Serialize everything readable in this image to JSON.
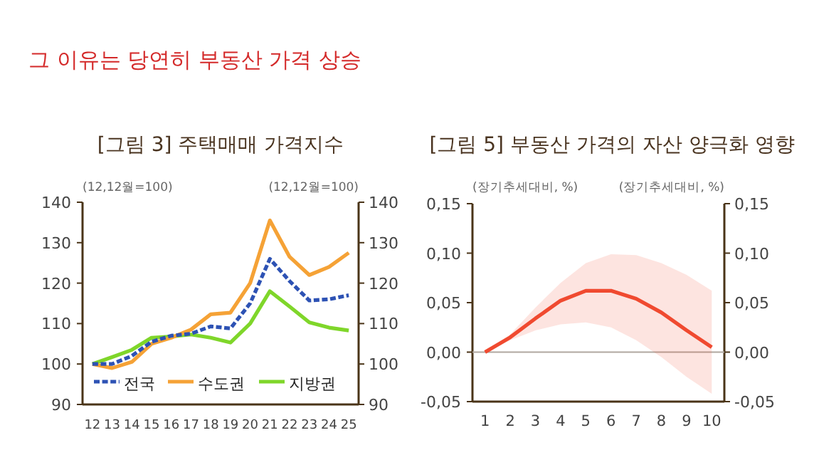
{
  "chart_data": [
    {
      "type": "other",
      "title": "그 이유는 당연히 부동산 가격 상승"
    },
    {
      "type": "line",
      "title": "[그림 3] 주택매매 가격지수",
      "ylabel": "(12,12월=100)",
      "y2label": "(12,12월=100)",
      "categories": [
        "12",
        "13",
        "14",
        "15",
        "16",
        "17",
        "18",
        "19",
        "20",
        "21",
        "22",
        "23",
        "24",
        "25"
      ],
      "ylim": [
        90,
        140
      ],
      "yticks": [
        90,
        100,
        110,
        120,
        130,
        140
      ],
      "y2lim": [
        90,
        140
      ],
      "y2ticks": [
        90,
        100,
        110,
        120,
        130,
        140
      ],
      "legend": "bottom right",
      "grid": false,
      "series": [
        {
          "name": "전국",
          "color": "#2d52b4",
          "line_style": "dashed",
          "values": [
            100,
            100,
            102,
            105.5,
            107,
            107.5,
            109.3,
            108.8,
            115,
            126,
            120.5,
            115.7,
            116,
            117
          ]
        },
        {
          "name": "수도권",
          "color": "#f5a236",
          "line_style": "solid",
          "values": [
            100,
            99,
            100.5,
            105,
            106.5,
            108.5,
            112.3,
            112.7,
            120,
            135.5,
            126.5,
            122,
            124,
            127.5
          ]
        },
        {
          "name": "지방권",
          "color": "#7fd62a",
          "line_style": "solid",
          "values": [
            100,
            101.7,
            103.5,
            106.5,
            106.8,
            107.3,
            106.5,
            105.3,
            110,
            118,
            114.2,
            110.3,
            109,
            108.3
          ]
        }
      ]
    },
    {
      "type": "line",
      "title": "[그림 5] 부동산 가격의 자산 양극화 영향",
      "ylabel": "(장기추세대비, %)",
      "y2label": "(장기추세대비, %)",
      "categories": [
        "1",
        "2",
        "3",
        "4",
        "5",
        "6",
        "7",
        "8",
        "9",
        "10"
      ],
      "ylim": [
        -0.05,
        0.15
      ],
      "yticks": [
        {
          "value": -0.05,
          "label": "-0,05"
        },
        {
          "value": 0,
          "label": "0,00"
        },
        {
          "value": 0.05,
          "label": "0,05"
        },
        {
          "value": 0.1,
          "label": "0,10"
        },
        {
          "value": 0.15,
          "label": "0,15"
        }
      ],
      "y2lim": [
        -0.05,
        0.15
      ],
      "y2ticks": [
        {
          "value": -0.05,
          "label": "-0,05"
        },
        {
          "value": 0,
          "label": "0,00"
        },
        {
          "value": 0.05,
          "label": "0,05"
        },
        {
          "value": 0.1,
          "label": "0,10"
        },
        {
          "value": 0.15,
          "label": "0,15"
        }
      ],
      "grid": false,
      "ref_lines": [
        {
          "axis": "y",
          "value": 0,
          "color": "#b0a8a0"
        }
      ],
      "series": [
        {
          "color": "#f04a30",
          "line_style": "solid",
          "values": [
            0,
            0.015,
            0.034,
            0.052,
            0.062,
            0.062,
            0.054,
            0.04,
            0.022,
            0.005
          ],
          "lower": [
            0,
            0.012,
            0.022,
            0.028,
            0.03,
            0.025,
            0.012,
            -0.005,
            -0.025,
            -0.042
          ],
          "upper": [
            0,
            0.018,
            0.045,
            0.07,
            0.09,
            0.099,
            0.098,
            0.09,
            0.078,
            0.062
          ]
        }
      ]
    }
  ]
}
